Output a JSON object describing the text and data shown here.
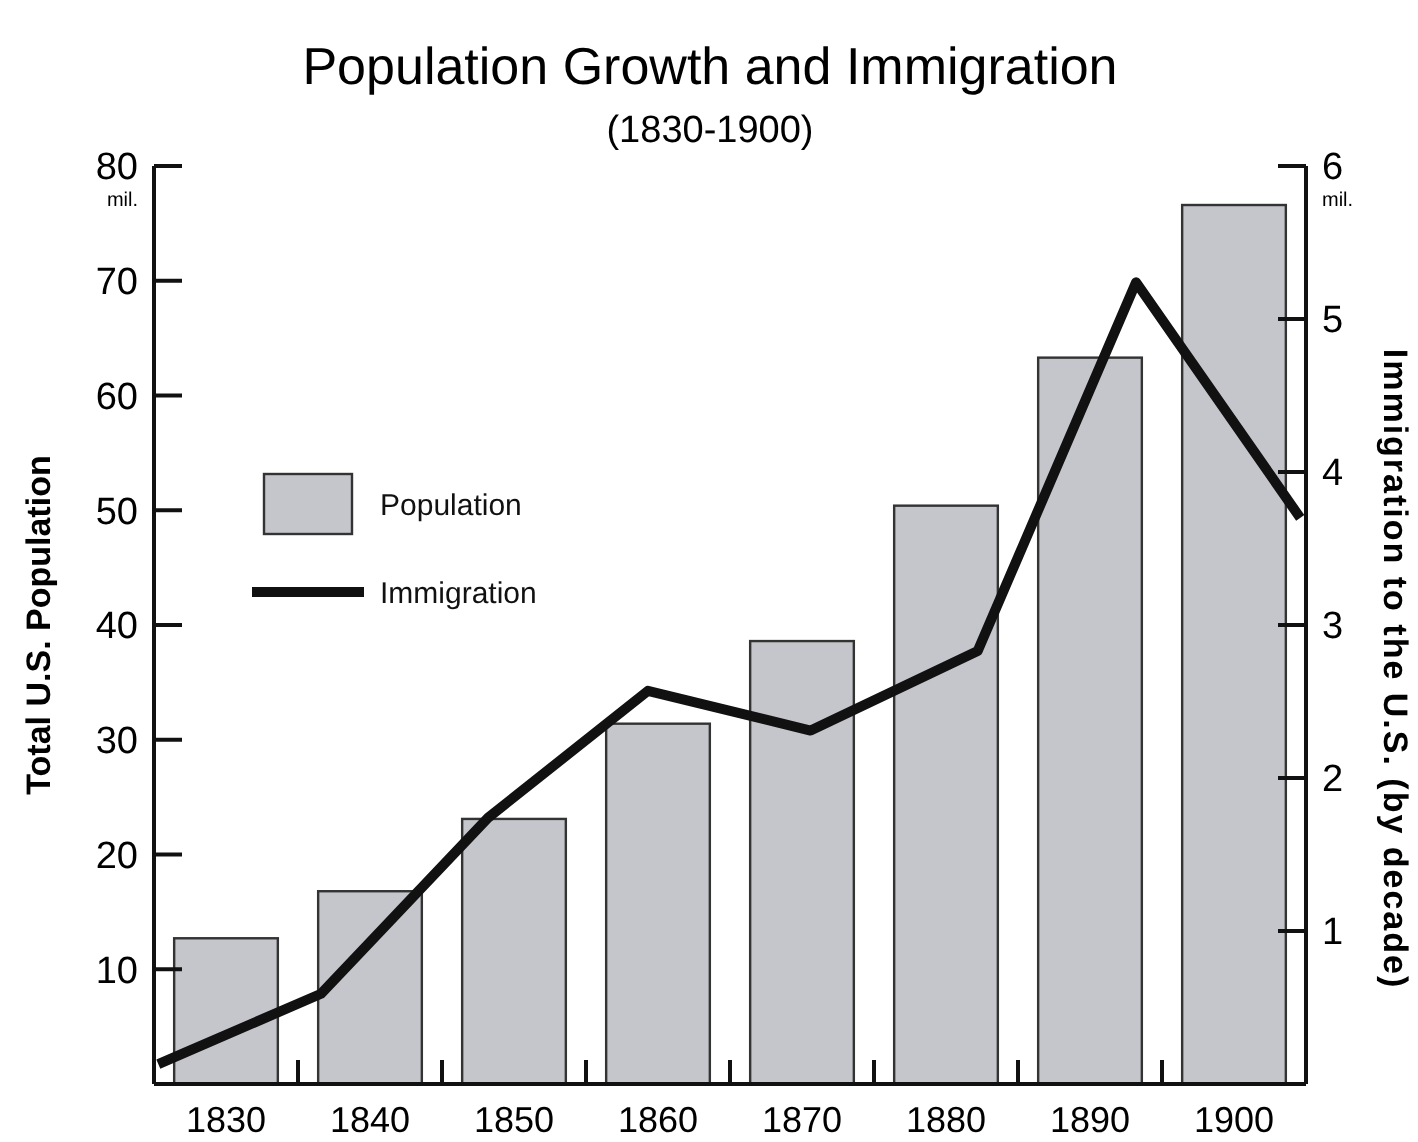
{
  "chart_data": {
    "type": "bar",
    "title": "Population Growth and Immigration",
    "subtitle": "(1830-1900)",
    "ylabel": "Total U.S. Population",
    "y2label": "Immigration to the U.S. (by decade)",
    "x": [
      1830,
      1840,
      1850,
      1860,
      1870,
      1880,
      1890,
      1900
    ],
    "xlim": [
      1825,
      1905
    ],
    "xticks": [
      {
        "value": 1830,
        "label": "1830"
      },
      {
        "value": 1835,
        "label": null
      },
      {
        "value": 1840,
        "label": "1840"
      },
      {
        "value": 1845,
        "label": null
      },
      {
        "value": 1850,
        "label": "1850"
      },
      {
        "value": 1855,
        "label": null
      },
      {
        "value": 1860,
        "label": "1860"
      },
      {
        "value": 1865,
        "label": null
      },
      {
        "value": 1870,
        "label": "1870"
      },
      {
        "value": 1875,
        "label": null
      },
      {
        "value": 1880,
        "label": "1880"
      },
      {
        "value": 1885,
        "label": null
      },
      {
        "value": 1890,
        "label": "1890"
      },
      {
        "value": 1895,
        "label": null
      },
      {
        "value": 1900,
        "label": "1900"
      }
    ],
    "ylim": [
      0,
      80
    ],
    "yticks": [
      10,
      20,
      30,
      40,
      50,
      60,
      70,
      80
    ],
    "y2lim": [
      0,
      6
    ],
    "y2ticks": [
      1,
      2,
      3,
      4,
      5,
      6
    ],
    "series": [
      {
        "name": "Population",
        "color": "#c4c6cc",
        "values": [
          12.7,
          16.8,
          23.1,
          31.4,
          38.6,
          50.4,
          63.3,
          76.6
        ]
      },
      {
        "name": "Immigration",
        "type": "line",
        "axis": "y2",
        "color": "#111111",
        "x": [
          1825.3,
          1836.6,
          1848.2,
          1859.3,
          1870.6,
          1882.2,
          1893.2,
          1904.6
        ],
        "values": [
          0.13,
          0.59,
          1.74,
          2.57,
          2.31,
          2.83,
          5.24,
          3.7
        ]
      }
    ],
    "annotations": [
      "mil.",
      "mil."
    ],
    "legend": "top left",
    "grid": false
  }
}
